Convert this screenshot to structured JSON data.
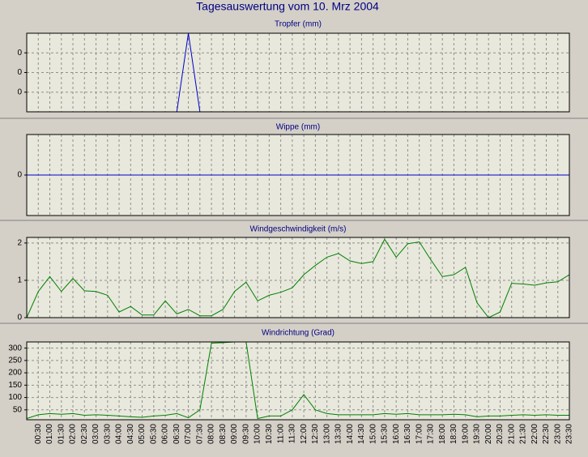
{
  "title": "Tagesauswertung vom 10. Mrz 2004",
  "chart_data": [
    {
      "type": "line",
      "title": "Tropfer (mm)",
      "grid": true,
      "ylim": [
        0,
        0.4
      ],
      "yticks": [
        {
          "value": 0.1,
          "label": "0"
        },
        {
          "value": 0.2,
          "label": "0"
        },
        {
          "value": 0.3,
          "label": "0"
        }
      ],
      "series": [
        {
          "color": "#0000cc",
          "values": [
            0,
            0,
            0,
            0,
            0,
            0,
            0,
            0,
            0,
            0,
            0,
            0,
            0,
            0,
            0.4,
            0,
            0,
            0,
            0,
            0,
            0,
            0,
            0,
            0,
            0,
            0,
            0,
            0,
            0,
            0,
            0,
            0,
            0,
            0,
            0,
            0,
            0,
            0,
            0,
            0,
            0,
            0,
            0,
            0,
            0,
            0,
            0,
            0
          ]
        }
      ]
    },
    {
      "type": "line",
      "title": "Wippe (mm)",
      "grid": true,
      "ylim": [
        -1,
        1
      ],
      "yticks": [
        0
      ],
      "series": [
        {
          "color": "#0000cc",
          "values": [
            0,
            0,
            0,
            0,
            0,
            0,
            0,
            0,
            0,
            0,
            0,
            0,
            0,
            0,
            0,
            0,
            0,
            0,
            0,
            0,
            0,
            0,
            0,
            0,
            0,
            0,
            0,
            0,
            0,
            0,
            0,
            0,
            0,
            0,
            0,
            0,
            0,
            0,
            0,
            0,
            0,
            0,
            0,
            0,
            0,
            0,
            0,
            0
          ]
        }
      ]
    },
    {
      "type": "line",
      "title": "Windgeschwindigkeit (m/s)",
      "grid": true,
      "ylim": [
        0,
        2.15
      ],
      "yticks": [
        0,
        1,
        2
      ],
      "series": [
        {
          "color": "#008000",
          "values": [
            0,
            0.7,
            1.1,
            0.7,
            1.05,
            0.72,
            0.7,
            0.6,
            0.15,
            0.3,
            0.07,
            0.07,
            0.45,
            0.1,
            0.22,
            0.05,
            0.05,
            0.22,
            0.7,
            0.95,
            0.45,
            0.6,
            0.68,
            0.8,
            1.15,
            1.4,
            1.62,
            1.72,
            1.52,
            1.45,
            1.5,
            2.1,
            1.62,
            1.98,
            2.03,
            1.55,
            1.1,
            1.15,
            1.35,
            0.4,
            0,
            0.15,
            0.92,
            0.9,
            0.87,
            0.93,
            0.96,
            1.15
          ]
        }
      ]
    },
    {
      "type": "line",
      "title": "Windrichtung (Grad)",
      "grid": true,
      "ylim": [
        10,
        325
      ],
      "yticks": [
        50,
        100,
        150,
        200,
        250,
        300
      ],
      "categories": [
        null,
        "00:30",
        "01:00",
        "01:30",
        "02:00",
        "02:30",
        "03:00",
        "03:30",
        "04:00",
        "04:30",
        "05:00",
        "05:30",
        "06:00",
        "06:30",
        "07:00",
        "07:30",
        "08:00",
        "08:30",
        "09:00",
        "09:30",
        "10:00",
        "10:30",
        "11:00",
        "11:30",
        "12:00",
        "12:30",
        "13:00",
        "13:30",
        "14:00",
        "14:30",
        "15:00",
        "15:30",
        "16:00",
        "16:30",
        "17:00",
        "17:30",
        "18:00",
        "18:30",
        "19:00",
        "19:30",
        "20:00",
        "20:30",
        "21:00",
        "21:30",
        "22:00",
        "22:30",
        "23:00",
        "23:30"
      ],
      "series": [
        {
          "color": "#008000",
          "values": [
            15,
            30,
            35,
            32,
            35,
            28,
            30,
            28,
            25,
            22,
            20,
            25,
            28,
            35,
            18,
            50,
            320,
            322,
            325,
            325,
            15,
            25,
            25,
            50,
            112,
            50,
            35,
            30,
            30,
            30,
            30,
            35,
            32,
            35,
            30,
            30,
            30,
            32,
            30,
            22,
            25,
            25,
            28,
            30,
            28,
            30,
            28,
            28
          ]
        }
      ]
    }
  ]
}
